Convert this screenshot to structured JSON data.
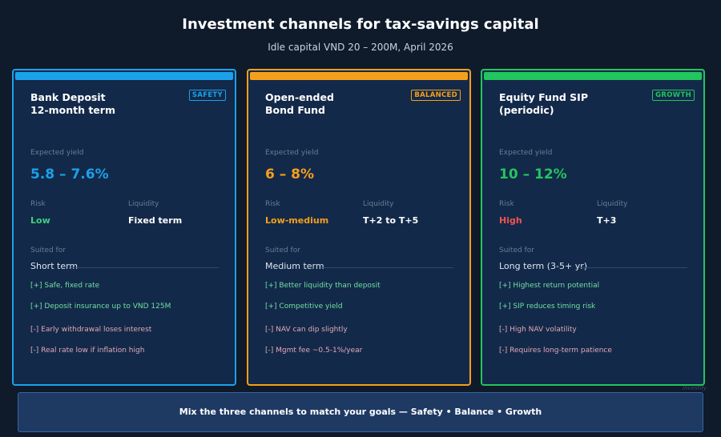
{
  "header": {
    "title": "Investment channels for tax-savings capital",
    "subtitle": "Idle capital VND 20 – 200M, April 2026"
  },
  "labels": {
    "expected_yield": "Expected yield",
    "risk": "Risk",
    "liquidity": "Liquidity",
    "suited_for": "Suited for"
  },
  "cards": [
    {
      "name_line1": "Bank Deposit",
      "name_line2": "12-month term",
      "badge": "SAFETY",
      "accent": "#1aa1ea",
      "yield": "5.8 – 7.6%",
      "risk": "Low",
      "risk_color": "#3fd07a",
      "liquidity": "Fixed term",
      "term": "Short term",
      "pros": [
        "[+] Safe, fixed rate",
        "[+] Deposit insurance up to VND 125M"
      ],
      "cons": [
        "[-] Early withdrawal loses interest",
        "[-] Real rate low if inflation high"
      ]
    },
    {
      "name_line1": "Open-ended",
      "name_line2": "Bond Fund",
      "badge": "BALANCED",
      "accent": "#f5a01a",
      "yield": "6 – 8%",
      "risk": "Low-medium",
      "risk_color": "#f5a01a",
      "liquidity": "T+2 to T+5",
      "term": "Medium term",
      "pros": [
        "[+] Better liquidity than deposit",
        "[+] Competitive yield"
      ],
      "cons": [
        "[-] NAV can dip slightly",
        "[-] Mgmt fee ~0.5-1%/year"
      ]
    },
    {
      "name_line1": "Equity Fund SIP",
      "name_line2": "(periodic)",
      "badge": "GROWTH",
      "accent": "#22c55e",
      "yield": "10 – 12%",
      "risk": "High",
      "risk_color": "#ef5350",
      "liquidity": "T+3",
      "term": "Long term (3-5+ yr)",
      "pros": [
        "[+] Highest return potential",
        "[+] SIP reduces timing risk"
      ],
      "cons": [
        "[-] High NAV volatility",
        "[-] Requires long-term patience"
      ]
    }
  ],
  "watermark": "Investify",
  "footer": "Mix the three channels to match your goals — Safety • Balance • Growth"
}
